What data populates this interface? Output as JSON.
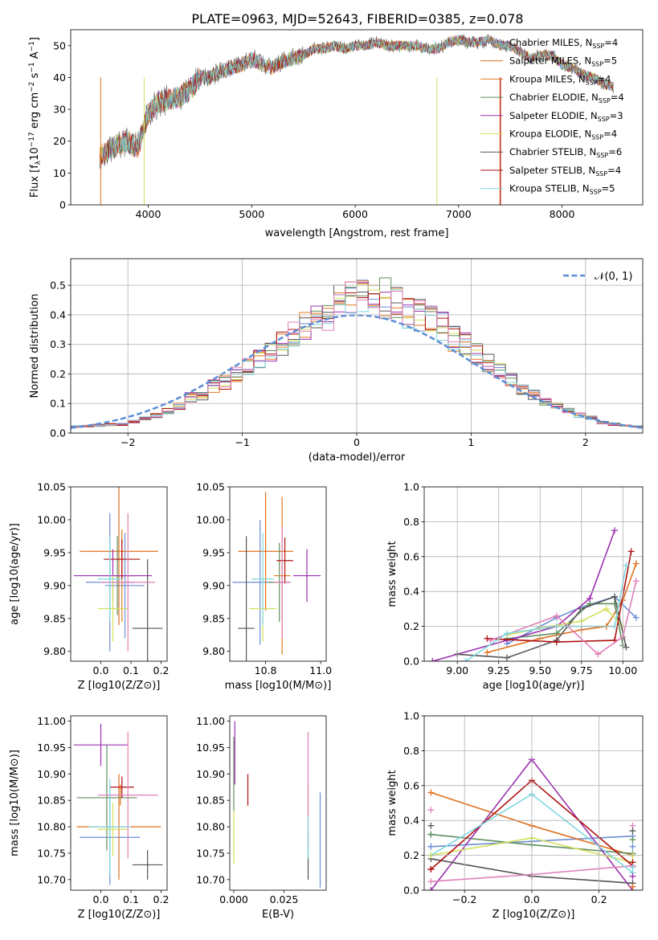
{
  "title": "PLATE=0963, MJD=52643, FIBERID=0385, z=0.078",
  "colors": {
    "Chabrier MILES": "#6b8ed6",
    "Salpeter MILES": "#e0701e",
    "Kroupa MILES": "#e07c20",
    "Chabrier ELODIE": "#5f8f5f",
    "Salpeter ELODIE": "#9b30b0",
    "Kroupa ELODIE": "#d4e05a",
    "Chabrier STELIB": "#555555",
    "Salpeter STELIB": "#b01010",
    "Kroupa STELIB": "#80d8e0",
    "pink": "#e080b8",
    "gaussian": "#5b8ed6"
  },
  "chart_data": [
    {
      "type": "line",
      "panel": "spectrum",
      "title": "PLATE=0963, MJD=52643, FIBERID=0385, z=0.078",
      "xlabel": "wavelength [Angstrom, rest frame]",
      "ylabel": "Flux [f_λ 10^-17 erg cm^-2 s^-1 A^-1]",
      "xlim": [
        3250,
        8780
      ],
      "ylim": [
        0,
        55
      ],
      "xticks": [
        4000,
        5000,
        6000,
        7000,
        8000
      ],
      "yticks": [
        0,
        10,
        20,
        30,
        40,
        50
      ],
      "legend_position": "upper right",
      "spectrum_x": [
        3530,
        3600,
        3700,
        3800,
        3900,
        4000,
        4100,
        4200,
        4300,
        4400,
        4500,
        4600,
        4700,
        4800,
        4900,
        5000,
        5100,
        5200,
        5300,
        5400,
        5500,
        5600,
        5700,
        5800,
        5900,
        6000,
        6100,
        6200,
        6300,
        6400,
        6500,
        6600,
        6700,
        6800,
        6900,
        7000,
        7100,
        7200,
        7300,
        7400,
        7500,
        7600,
        7700,
        7800,
        7900,
        8000,
        8100,
        8200,
        8300,
        8400,
        8500
      ],
      "spectrum_y": [
        15,
        17,
        19,
        20,
        18,
        29,
        32,
        33,
        34,
        36,
        40,
        40,
        42,
        43,
        44,
        46,
        44,
        43,
        45,
        46,
        47,
        49,
        49,
        50,
        49,
        50,
        50,
        51,
        50,
        50,
        50,
        50,
        49,
        49,
        51,
        52,
        51,
        51,
        52,
        50,
        50,
        48,
        46,
        47,
        47,
        44,
        43,
        41,
        40,
        38,
        37
      ],
      "series": [
        {
          "name": "Chabrier MILES, N_SSP=4",
          "label_main": "Chabrier MILES, N",
          "label_sub": "SSP",
          "label_tail": "=4",
          "color": "#6b8ed6"
        },
        {
          "name": "Salpeter MILES, N_SSP=5",
          "label_main": "Salpeter MILES, N",
          "label_sub": "SSP",
          "label_tail": "=5",
          "color": "#e0701e"
        },
        {
          "name": "Kroupa MILES, N_SSP=4",
          "label_main": "Kroupa MILES, N",
          "label_sub": "SSP",
          "label_tail": "=4",
          "color": "#e07c20"
        },
        {
          "name": "Chabrier ELODIE, N_SSP=4",
          "label_main": "Chabrier ELODIE, N",
          "label_sub": "SSP",
          "label_tail": "=4",
          "color": "#5f8f5f"
        },
        {
          "name": "Salpeter ELODIE, N_SSP=3",
          "label_main": "Salpeter ELODIE, N",
          "label_sub": "SSP",
          "label_tail": "=3",
          "color": "#9b30b0"
        },
        {
          "name": "Kroupa ELODIE, N_SSP=4",
          "label_main": "Kroupa ELODIE, N",
          "label_sub": "SSP",
          "label_tail": "=4",
          "color": "#d4e05a"
        },
        {
          "name": "Chabrier STELIB, N_SSP=6",
          "label_main": "Chabrier STELIB, N",
          "label_sub": "SSP",
          "label_tail": "=6",
          "color": "#555555"
        },
        {
          "name": "Salpeter STELIB, N_SSP=4",
          "label_main": "Salpeter STELIB, N",
          "label_sub": "SSP",
          "label_tail": "=4",
          "color": "#b01010"
        },
        {
          "name": "Kroupa STELIB, N_SSP=5",
          "label_main": "Kroupa STELIB, N",
          "label_sub": "SSP",
          "label_tail": "=5",
          "color": "#80d8e0"
        }
      ]
    },
    {
      "type": "bar",
      "panel": "residual-histogram",
      "xlabel": "(data-model)/error",
      "ylabel": "Normed distribution",
      "xlim": [
        -2.5,
        2.5
      ],
      "ylim": [
        0,
        0.59
      ],
      "xticks": [
        -2,
        -1,
        0,
        1,
        2
      ],
      "yticks": [
        0.0,
        0.1,
        0.2,
        0.3,
        0.4,
        0.5
      ],
      "grid": true,
      "legend": "𝒩(0, 1)",
      "legend_position": "upper right",
      "bin_edges": [
        -2.5,
        -2.4,
        -2.3,
        -2.2,
        -2.1,
        -2.0,
        -1.9,
        -1.8,
        -1.7,
        -1.6,
        -1.5,
        -1.4,
        -1.3,
        -1.2,
        -1.1,
        -1.0,
        -0.9,
        -0.8,
        -0.7,
        -0.6,
        -0.5,
        -0.4,
        -0.3,
        -0.2,
        -0.1,
        0.0,
        0.1,
        0.2,
        0.3,
        0.4,
        0.5,
        0.6,
        0.7,
        0.8,
        0.9,
        1.0,
        1.1,
        1.2,
        1.3,
        1.4,
        1.5,
        1.6,
        1.7,
        1.8,
        1.9,
        2.0,
        2.1,
        2.2,
        2.3,
        2.4,
        2.5
      ],
      "base_density": [
        0.022,
        0.024,
        0.026,
        0.028,
        0.03,
        0.04,
        0.05,
        0.06,
        0.075,
        0.09,
        0.12,
        0.13,
        0.16,
        0.17,
        0.2,
        0.23,
        0.25,
        0.27,
        0.3,
        0.33,
        0.36,
        0.38,
        0.4,
        0.44,
        0.45,
        0.46,
        0.46,
        0.44,
        0.44,
        0.41,
        0.4,
        0.38,
        0.36,
        0.32,
        0.3,
        0.27,
        0.24,
        0.21,
        0.18,
        0.15,
        0.13,
        0.11,
        0.09,
        0.075,
        0.06,
        0.05,
        0.035,
        0.03,
        0.025,
        0.022
      ],
      "gaussian": {
        "mean": 0,
        "sigma": 1
      }
    },
    {
      "type": "scatter",
      "panel": "age-vs-Z",
      "xlabel": "Z [log10(Z/Z⊙)]",
      "ylabel": "age  [log10(age/yr)]",
      "xlim": [
        -0.1,
        0.22
      ],
      "ylim": [
        9.785,
        10.05
      ],
      "xticks": [
        0.0,
        0.1,
        0.2
      ],
      "yticks": [
        9.8,
        9.85,
        9.9,
        9.95,
        10.0,
        10.05
      ],
      "points": [
        {
          "x": 0.03,
          "y": 9.905,
          "xerr": 0.08,
          "yerr": 0.105,
          "color": "#6b8ed6"
        },
        {
          "x": 0.08,
          "y": 9.9,
          "xerr": 0.065,
          "yerr": 0.08,
          "color": "#6b8ed6"
        },
        {
          "x": 0.06,
          "y": 9.952,
          "xerr": 0.13,
          "yerr": 0.112,
          "color": "#e0701e"
        },
        {
          "x": 0.07,
          "y": 9.915,
          "xerr": 0.045,
          "yerr": 0.07,
          "color": "#e07c20"
        },
        {
          "x": 0.055,
          "y": 9.915,
          "xerr": 0.07,
          "yerr": 0.06,
          "color": "#5f8f5f"
        },
        {
          "x": 0.04,
          "y": 9.915,
          "xerr": 0.13,
          "yerr": 0.04,
          "color": "#9b30b0"
        },
        {
          "x": 0.04,
          "y": 9.865,
          "xerr": 0.05,
          "yerr": 0.05,
          "color": "#d4e05a"
        },
        {
          "x": 0.155,
          "y": 9.835,
          "xerr": 0.05,
          "yerr": 0.105,
          "color": "#555555"
        },
        {
          "x": 0.07,
          "y": 9.94,
          "xerr": 0.06,
          "yerr": 0.03,
          "color": "#b01010"
        },
        {
          "x": 0.09,
          "y": 9.905,
          "xerr": 0.09,
          "yerr": 0.105,
          "color": "#e080b8"
        },
        {
          "x": 0.03,
          "y": 9.91,
          "xerr": 0.04,
          "yerr": 0.065,
          "color": "#80d8e0"
        }
      ]
    },
    {
      "type": "scatter",
      "panel": "age-vs-mass",
      "xlabel": "mass [log10(M/M⊙)]",
      "ylabel": "",
      "xlim": [
        10.67,
        11.02
      ],
      "ylim": [
        9.785,
        10.05
      ],
      "xticks": [
        10.8,
        11.0
      ],
      "yticks": [
        9.8,
        9.85,
        9.9,
        9.95,
        10.0,
        10.05
      ],
      "points": [
        {
          "x": 10.78,
          "y": 9.905,
          "xerr": 0.1,
          "yerr": 0.095,
          "color": "#6b8ed6"
        },
        {
          "x": 10.8,
          "y": 9.952,
          "xerr": 0.1,
          "yerr": 0.09,
          "color": "#e0701e"
        },
        {
          "x": 10.86,
          "y": 9.915,
          "xerr": 0.03,
          "yerr": 0.12,
          "color": "#e07c20"
        },
        {
          "x": 10.85,
          "y": 9.905,
          "xerr": 0.04,
          "yerr": 0.06,
          "color": "#5f8f5f"
        },
        {
          "x": 10.95,
          "y": 9.915,
          "xerr": 0.05,
          "yerr": 0.04,
          "color": "#9b30b0"
        },
        {
          "x": 10.79,
          "y": 9.865,
          "xerr": 0.05,
          "yerr": 0.05,
          "color": "#d4e05a"
        },
        {
          "x": 10.73,
          "y": 9.835,
          "xerr": 0.03,
          "yerr": 0.14,
          "color": "#555555"
        },
        {
          "x": 10.87,
          "y": 9.938,
          "xerr": 0.03,
          "yerr": 0.035,
          "color": "#b01010"
        },
        {
          "x": 10.86,
          "y": 9.905,
          "xerr": 0.03,
          "yerr": 0.085,
          "color": "#e080b8"
        },
        {
          "x": 10.79,
          "y": 9.91,
          "xerr": 0.04,
          "yerr": 0.07,
          "color": "#80d8e0"
        }
      ]
    },
    {
      "type": "line",
      "panel": "weight-vs-age",
      "xlabel": "age  [log10(age/yr)]",
      "ylabel": "mass weight",
      "xlim": [
        8.8,
        10.12
      ],
      "ylim": [
        0,
        1.0
      ],
      "xticks": [
        9.0,
        9.25,
        9.5,
        9.75,
        10.0
      ],
      "yticks": [
        0.0,
        0.2,
        0.4,
        0.6,
        0.8,
        1.0
      ],
      "grid": true,
      "series": [
        {
          "color": "#6b8ed6",
          "x": [
            9.3,
            9.6,
            9.75,
            9.95,
            10.08
          ],
          "y": [
            0.1,
            0.25,
            0.31,
            0.37,
            0.25
          ]
        },
        {
          "color": "#e0701e",
          "x": [
            9.18,
            9.5,
            9.75,
            9.9,
            10.0,
            10.08
          ],
          "y": [
            0.05,
            0.13,
            0.18,
            0.2,
            0.35,
            0.56
          ]
        },
        {
          "color": "#5f8f5f",
          "x": [
            9.3,
            9.6,
            9.8,
            9.95,
            10.0
          ],
          "y": [
            0.13,
            0.16,
            0.33,
            0.33,
            0.09
          ]
        },
        {
          "color": "#9b30b0",
          "x": [
            8.85,
            9.3,
            9.6,
            9.8,
            9.95
          ],
          "y": [
            0.0,
            0.12,
            0.2,
            0.36,
            0.75
          ]
        },
        {
          "color": "#d4e05a",
          "x": [
            9.3,
            9.5,
            9.75,
            9.9,
            10.0
          ],
          "y": [
            0.15,
            0.19,
            0.23,
            0.3,
            0.2
          ]
        },
        {
          "color": "#555555",
          "x": [
            9.0,
            9.3,
            9.6,
            9.75,
            9.95,
            10.02
          ],
          "y": [
            0.04,
            0.02,
            0.12,
            0.3,
            0.37,
            0.08
          ]
        },
        {
          "color": "#b01010",
          "x": [
            9.18,
            9.6,
            9.95,
            10.05
          ],
          "y": [
            0.13,
            0.11,
            0.12,
            0.63
          ]
        },
        {
          "color": "#e080b8",
          "x": [
            9.2,
            9.6,
            9.85,
            10.0,
            10.08
          ],
          "y": [
            0.12,
            0.26,
            0.04,
            0.14,
            0.46
          ]
        },
        {
          "color": "#80d8e0",
          "x": [
            9.05,
            9.3,
            9.6,
            9.95,
            10.02
          ],
          "y": [
            0.0,
            0.16,
            0.2,
            0.2,
            0.55
          ]
        }
      ]
    },
    {
      "type": "scatter",
      "panel": "mass-vs-Z",
      "xlabel": "Z [log10(Z/Z⊙)]",
      "ylabel": "mass [log10(M/M⊙)]",
      "xlim": [
        -0.1,
        0.22
      ],
      "ylim": [
        10.68,
        11.01
      ],
      "xticks": [
        0.0,
        0.1,
        0.2
      ],
      "yticks": [
        10.7,
        10.75,
        10.8,
        10.85,
        10.9,
        10.95,
        11.0
      ],
      "points": [
        {
          "x": 0.03,
          "y": 10.78,
          "xerr": 0.1,
          "yerr": 0.09,
          "color": "#6b8ed6"
        },
        {
          "x": 0.06,
          "y": 10.8,
          "xerr": 0.14,
          "yerr": 0.1,
          "color": "#e0701e"
        },
        {
          "x": 0.065,
          "y": 10.86,
          "xerr": 0.01,
          "yerr": 0.02,
          "color": "#e07c20"
        },
        {
          "x": 0.02,
          "y": 10.855,
          "xerr": 0.1,
          "yerr": 0.1,
          "color": "#5f8f5f"
        },
        {
          "x": 0.0,
          "y": 10.955,
          "xerr": 0.09,
          "yerr": 0.04,
          "color": "#9b30b0"
        },
        {
          "x": 0.04,
          "y": 10.795,
          "xerr": 0.05,
          "yerr": 0.05,
          "color": "#d4e05a"
        },
        {
          "x": 0.155,
          "y": 10.728,
          "xerr": 0.05,
          "yerr": 0.028,
          "color": "#555555"
        },
        {
          "x": 0.07,
          "y": 10.875,
          "xerr": 0.04,
          "yerr": 0.02,
          "color": "#b01010"
        },
        {
          "x": 0.09,
          "y": 10.86,
          "xerr": 0.1,
          "yerr": 0.12,
          "color": "#e080b8"
        },
        {
          "x": 0.03,
          "y": 10.8,
          "xerr": 0.07,
          "yerr": 0.09,
          "color": "#80d8e0"
        }
      ]
    },
    {
      "type": "scatter",
      "panel": "mass-vs-EBV",
      "xlabel": "E(B-V)",
      "ylabel": "",
      "xlim": [
        -0.002,
        0.046
      ],
      "ylim": [
        10.68,
        11.01
      ],
      "xticks": [
        0.0,
        0.025
      ],
      "xticklabels": [
        "0.000",
        "0.025"
      ],
      "yticks": [
        10.7,
        10.75,
        10.8,
        10.85,
        10.9,
        10.95,
        11.0
      ],
      "points": [
        {
          "x": 0.043,
          "y": 10.775,
          "xerr": 0,
          "yerr": 0.09,
          "color": "#6b8ed6"
        },
        {
          "x": 0.037,
          "y": 10.82,
          "xerr": 0,
          "yerr": 0.06,
          "color": "#e0701e"
        },
        {
          "x": 0.0,
          "y": 10.9,
          "xerr": 0,
          "yerr": 0.07,
          "color": "#5f8f5f"
        },
        {
          "x": 0.0005,
          "y": 10.94,
          "xerr": 0,
          "yerr": 0.06,
          "color": "#9b30b0"
        },
        {
          "x": 0.0,
          "y": 10.78,
          "xerr": 0,
          "yerr": 0.05,
          "color": "#d4e05a"
        },
        {
          "x": 0.037,
          "y": 10.745,
          "xerr": 0,
          "yerr": 0.045,
          "color": "#555555"
        },
        {
          "x": 0.007,
          "y": 10.87,
          "xerr": 0,
          "yerr": 0.03,
          "color": "#b01010"
        },
        {
          "x": 0.037,
          "y": 10.9,
          "xerr": 0,
          "yerr": 0.08,
          "color": "#e080b8"
        },
        {
          "x": 0.037,
          "y": 10.78,
          "xerr": 0,
          "yerr": 0.04,
          "color": "#80d8e0"
        }
      ]
    },
    {
      "type": "line",
      "panel": "weight-vs-Z",
      "xlabel": "Z [log10(Z/Z⊙)]",
      "ylabel": "mass weight",
      "xlim": [
        -0.32,
        0.33
      ],
      "ylim": [
        0,
        1.0
      ],
      "xticks": [
        -0.2,
        0.0,
        0.2
      ],
      "yticks": [
        0.0,
        0.2,
        0.4,
        0.6,
        0.8,
        1.0
      ],
      "grid": true,
      "series": [
        {
          "color": "#6b8ed6",
          "x": [
            -0.3,
            0.0,
            0.3
          ],
          "y": [
            0.25,
            0.28,
            0.31
          ]
        },
        {
          "color": "#e0701e",
          "x": [
            -0.3,
            0.0,
            0.3
          ],
          "y": [
            0.56,
            0.37,
            0.2
          ]
        },
        {
          "color": "#5f8f5f",
          "x": [
            -0.3,
            0.0,
            0.3
          ],
          "y": [
            0.32,
            0.26,
            0.21
          ]
        },
        {
          "color": "#9b30b0",
          "x": [
            -0.3,
            0.0,
            0.3
          ],
          "y": [
            0.0,
            0.75,
            0.0
          ]
        },
        {
          "color": "#d4e05a",
          "x": [
            -0.3,
            0.0,
            0.3
          ],
          "y": [
            0.2,
            0.3,
            0.16
          ]
        },
        {
          "color": "#555555",
          "x": [
            -0.3,
            0.0,
            0.3
          ],
          "y": [
            0.18,
            0.08,
            0.04
          ]
        },
        {
          "color": "#b01010",
          "x": [
            -0.3,
            0.0,
            0.3
          ],
          "y": [
            0.12,
            0.63,
            0.14
          ]
        },
        {
          "color": "#e080b8",
          "x": [
            -0.3,
            0.0,
            0.3
          ],
          "y": [
            0.05,
            0.09,
            0.14
          ]
        },
        {
          "color": "#80d8e0",
          "x": [
            -0.3,
            0.0,
            0.3
          ],
          "y": [
            0.2,
            0.55,
            0.1
          ]
        }
      ],
      "endpoint_markers": [
        {
          "x": -0.3,
          "values": [
            0.46,
            0.37,
            0.32,
            0.25,
            0.2,
            0.12
          ]
        },
        {
          "x": 0.3,
          "values": [
            0.37,
            0.34,
            0.29,
            0.25,
            0.2,
            0.16,
            0.13,
            0.08,
            0.02
          ]
        }
      ]
    }
  ]
}
